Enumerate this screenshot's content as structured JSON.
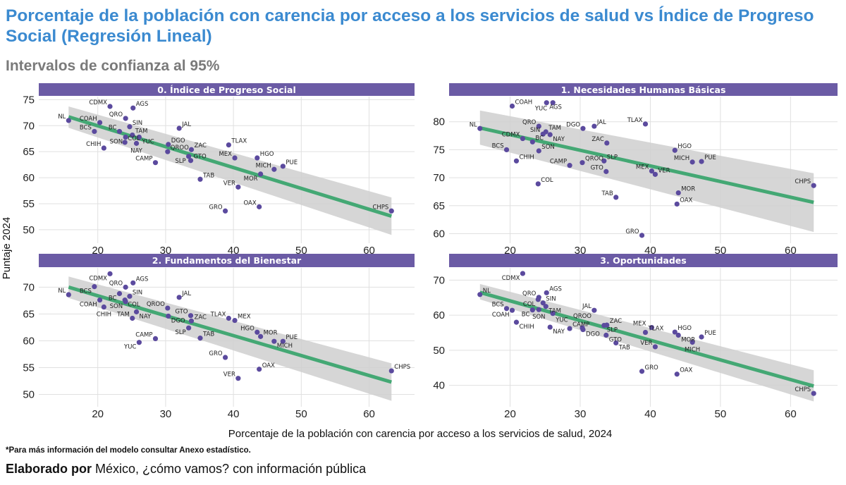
{
  "title": "Porcentaje de la población con carencia por acceso a los servicios de salud vs Índice de Progreso Social (Regresión Lineal)",
  "subtitle": "Intervalos de confianza al 95%",
  "note": "*Para más información del modelo consultar Anexo estadístico.",
  "credit": {
    "bold": "Elaborado por",
    "rest": " México, ¿cómo vamos? con información pública"
  },
  "colors": {
    "title": "#3b8ad0",
    "strip": "#6b5ba5",
    "point": "#5b4a9e",
    "fit": "#44a874",
    "band": "#cfcfcf"
  },
  "chart_data": [
    {
      "type": "scatter",
      "title": "0. Índice de Progreso Social",
      "xlabel": "Porcentaje de la población con carencia por acceso a los servicios de salud, 2024",
      "ylabel": "Puntaje 2024",
      "xlim": [
        11.3,
        66.7
      ],
      "ylim": [
        47.4,
        75.6
      ],
      "xticks": [
        20,
        30,
        40,
        50,
        60
      ],
      "yticks": [
        50,
        55,
        60,
        65,
        70,
        75
      ],
      "grid": true,
      "fit": {
        "x": [
          15.7,
          63.3
        ],
        "y": [
          71.7,
          52.6
        ],
        "ci_low": [
          69.6,
          49.0
        ],
        "ci_high": [
          73.7,
          56.2
        ]
      },
      "points": [
        {
          "label": "NL",
          "x": 15.7,
          "y": 71.0
        },
        {
          "label": "COAH",
          "x": 20.3,
          "y": 70.6
        },
        {
          "label": "CDMX",
          "x": 21.8,
          "y": 73.7
        },
        {
          "label": "AGS",
          "x": 25.2,
          "y": 73.4
        },
        {
          "label": "QRO",
          "x": 24.1,
          "y": 71.4
        },
        {
          "label": "SIN",
          "x": 24.7,
          "y": 69.8
        },
        {
          "label": "JAL",
          "x": 32.0,
          "y": 69.5
        },
        {
          "label": "BCS",
          "x": 19.5,
          "y": 68.9
        },
        {
          "label": "BC",
          "x": 23.2,
          "y": 68.9
        },
        {
          "label": "TAM",
          "x": 25.1,
          "y": 68.2
        },
        {
          "label": "SON",
          "x": 24.1,
          "y": 67.8
        },
        {
          "label": "YUC",
          "x": 26.1,
          "y": 67.8
        },
        {
          "label": "COL",
          "x": 24.0,
          "y": 66.8
        },
        {
          "label": "NAY",
          "x": 25.7,
          "y": 66.6
        },
        {
          "label": "DGO",
          "x": 30.4,
          "y": 66.4
        },
        {
          "label": "TLAX",
          "x": 39.3,
          "y": 66.3
        },
        {
          "label": "CHIH",
          "x": 20.9,
          "y": 65.7
        },
        {
          "label": "ZAC",
          "x": 33.8,
          "y": 65.4
        },
        {
          "label": "QROO",
          "x": 30.3,
          "y": 65.0
        },
        {
          "label": "SLP",
          "x": 33.4,
          "y": 64.1
        },
        {
          "label": "GTO",
          "x": 33.7,
          "y": 63.3
        },
        {
          "label": "MEX",
          "x": 40.2,
          "y": 63.8
        },
        {
          "label": "HGO",
          "x": 43.5,
          "y": 63.8
        },
        {
          "label": "CAMP",
          "x": 28.5,
          "y": 62.9
        },
        {
          "label": "PUE",
          "x": 47.3,
          "y": 62.2
        },
        {
          "label": "MICH",
          "x": 46.0,
          "y": 61.6
        },
        {
          "label": "MOR",
          "x": 44.0,
          "y": 60.7
        },
        {
          "label": "TAB",
          "x": 35.1,
          "y": 59.7
        },
        {
          "label": "VER",
          "x": 40.7,
          "y": 58.2
        },
        {
          "label": "OAX",
          "x": 43.8,
          "y": 54.4
        },
        {
          "label": "GRO",
          "x": 38.8,
          "y": 53.6
        },
        {
          "label": "CHPS",
          "x": 63.3,
          "y": 53.6
        }
      ]
    },
    {
      "type": "scatter",
      "title": "1. Necesidades Humanas Básicas",
      "xlim": [
        11.3,
        66.7
      ],
      "ylim": [
        58.3,
        84.5
      ],
      "xticks": [
        20,
        30,
        40,
        50,
        60
      ],
      "yticks": [
        60,
        65,
        70,
        75,
        80
      ],
      "grid": true,
      "fit": {
        "x": [
          15.7,
          63.3
        ],
        "y": [
          78.9,
          65.6
        ],
        "ci_low": [
          75.9,
          60.3
        ],
        "ci_high": [
          82.0,
          70.8
        ]
      },
      "points": [
        {
          "label": "COAH",
          "x": 20.3,
          "y": 82.8
        },
        {
          "label": "AGS",
          "x": 25.2,
          "y": 83.4
        },
        {
          "label": "YUC",
          "x": 26.1,
          "y": 83.4
        },
        {
          "label": "TLAX",
          "x": 39.3,
          "y": 79.6
        },
        {
          "label": "QRO",
          "x": 24.1,
          "y": 79.2
        },
        {
          "label": "JAL",
          "x": 32.0,
          "y": 79.2
        },
        {
          "label": "NL",
          "x": 15.7,
          "y": 78.8
        },
        {
          "label": "DGO",
          "x": 30.4,
          "y": 78.8
        },
        {
          "label": "TAM",
          "x": 25.1,
          "y": 78.2
        },
        {
          "label": "SIN",
          "x": 24.7,
          "y": 77.8
        },
        {
          "label": "NAY",
          "x": 25.7,
          "y": 77.7
        },
        {
          "label": "CDMX",
          "x": 21.8,
          "y": 77.0
        },
        {
          "label": "BC",
          "x": 23.2,
          "y": 76.4
        },
        {
          "label": "ZAC",
          "x": 33.8,
          "y": 76.2
        },
        {
          "label": "BCS",
          "x": 19.5,
          "y": 75.0
        },
        {
          "label": "SON",
          "x": 24.1,
          "y": 74.8
        },
        {
          "label": "HGO",
          "x": 43.5,
          "y": 74.9
        },
        {
          "label": "CHIH",
          "x": 20.9,
          "y": 73.0
        },
        {
          "label": "SLP",
          "x": 33.4,
          "y": 73.0
        },
        {
          "label": "PUE",
          "x": 47.3,
          "y": 72.9
        },
        {
          "label": "MICH",
          "x": 46.0,
          "y": 72.8
        },
        {
          "label": "QROO",
          "x": 30.3,
          "y": 72.7
        },
        {
          "label": "CAMP",
          "x": 28.5,
          "y": 72.2
        },
        {
          "label": "GTO",
          "x": 33.7,
          "y": 71.1
        },
        {
          "label": "MEX",
          "x": 40.2,
          "y": 71.2
        },
        {
          "label": "VER",
          "x": 40.7,
          "y": 70.6
        },
        {
          "label": "COL",
          "x": 24.0,
          "y": 68.9
        },
        {
          "label": "CHPS",
          "x": 63.3,
          "y": 68.6
        },
        {
          "label": "MOR",
          "x": 44.0,
          "y": 67.3
        },
        {
          "label": "TAB",
          "x": 35.1,
          "y": 66.5
        },
        {
          "label": "OAX",
          "x": 43.8,
          "y": 65.3
        },
        {
          "label": "GRO",
          "x": 38.8,
          "y": 59.7
        }
      ]
    },
    {
      "type": "scatter",
      "title": "2. Fundamentos del Bienestar",
      "xlim": [
        11.3,
        66.7
      ],
      "ylim": [
        47.7,
        73.6
      ],
      "xticks": [
        20,
        30,
        40,
        50,
        60
      ],
      "yticks": [
        50,
        55,
        60,
        65,
        70
      ],
      "grid": true,
      "fit": {
        "x": [
          15.7,
          63.3
        ],
        "y": [
          70.0,
          52.3
        ],
        "ci_low": [
          68.0,
          48.8
        ],
        "ci_high": [
          72.0,
          55.8
        ]
      },
      "points": [
        {
          "label": "CDMX",
          "x": 21.8,
          "y": 72.5
        },
        {
          "label": "AGS",
          "x": 25.2,
          "y": 70.8
        },
        {
          "label": "BCS",
          "x": 19.5,
          "y": 70.1
        },
        {
          "label": "QRO",
          "x": 24.1,
          "y": 70.0
        },
        {
          "label": "NL",
          "x": 15.7,
          "y": 68.6
        },
        {
          "label": "BC",
          "x": 23.2,
          "y": 68.8
        },
        {
          "label": "SIN",
          "x": 24.7,
          "y": 68.3
        },
        {
          "label": "JAL",
          "x": 32.0,
          "y": 68.1
        },
        {
          "label": "COAH",
          "x": 20.3,
          "y": 67.6
        },
        {
          "label": "COL",
          "x": 24.0,
          "y": 67.6
        },
        {
          "label": "SON",
          "x": 24.1,
          "y": 67.3
        },
        {
          "label": "CHIH",
          "x": 20.9,
          "y": 66.3
        },
        {
          "label": "QROO",
          "x": 30.3,
          "y": 66.1
        },
        {
          "label": "NAY",
          "x": 25.7,
          "y": 65.4
        },
        {
          "label": "GTO",
          "x": 33.7,
          "y": 64.7
        },
        {
          "label": "DGO",
          "x": 30.4,
          "y": 64.6
        },
        {
          "label": "TAM",
          "x": 25.1,
          "y": 64.2
        },
        {
          "label": "TLAX",
          "x": 39.3,
          "y": 64.2
        },
        {
          "label": "ZAC",
          "x": 33.8,
          "y": 63.7
        },
        {
          "label": "MEX",
          "x": 40.2,
          "y": 63.8
        },
        {
          "label": "SLP",
          "x": 33.4,
          "y": 62.4
        },
        {
          "label": "HGO",
          "x": 43.5,
          "y": 61.6
        },
        {
          "label": "MOR",
          "x": 44.0,
          "y": 60.8
        },
        {
          "label": "TAB",
          "x": 35.1,
          "y": 60.5
        },
        {
          "label": "CAMP",
          "x": 28.5,
          "y": 60.4
        },
        {
          "label": "MICH",
          "x": 46.0,
          "y": 59.9
        },
        {
          "label": "PUE",
          "x": 47.3,
          "y": 59.9
        },
        {
          "label": "YUC",
          "x": 26.1,
          "y": 59.7
        },
        {
          "label": "GRO",
          "x": 38.8,
          "y": 56.9
        },
        {
          "label": "OAX",
          "x": 43.8,
          "y": 54.7
        },
        {
          "label": "CHPS",
          "x": 63.3,
          "y": 54.4
        },
        {
          "label": "VER",
          "x": 40.7,
          "y": 53.0
        }
      ]
    },
    {
      "type": "scatter",
      "title": "3. Oportunidades",
      "xlim": [
        11.3,
        66.7
      ],
      "ylim": [
        33.9,
        73.5
      ],
      "xticks": [
        20,
        30,
        40,
        50,
        60
      ],
      "yticks": [
        40,
        50,
        60,
        70
      ],
      "grid": true,
      "fit": {
        "x": [
          15.7,
          63.3
        ],
        "y": [
          66.5,
          39.8
        ],
        "ci_low": [
          64.5,
          35.4
        ],
        "ci_high": [
          68.9,
          44.3
        ]
      },
      "points": [
        {
          "label": "CDMX",
          "x": 21.8,
          "y": 71.9
        },
        {
          "label": "AGS",
          "x": 25.2,
          "y": 66.4
        },
        {
          "label": "NL",
          "x": 15.7,
          "y": 65.9
        },
        {
          "label": "QRO",
          "x": 24.1,
          "y": 65.1
        },
        {
          "label": "COL",
          "x": 24.0,
          "y": 64.5
        },
        {
          "label": "SIN",
          "x": 24.7,
          "y": 63.5
        },
        {
          "label": "TAM",
          "x": 25.1,
          "y": 62.5
        },
        {
          "label": "BC",
          "x": 23.2,
          "y": 61.5
        },
        {
          "label": "SON",
          "x": 24.1,
          "y": 61.6
        },
        {
          "label": "YUC",
          "x": 26.1,
          "y": 60.5
        },
        {
          "label": "BCS",
          "x": 19.5,
          "y": 61.9
        },
        {
          "label": "COAH",
          "x": 20.3,
          "y": 61.4
        },
        {
          "label": "JAL",
          "x": 32.0,
          "y": 61.4
        },
        {
          "label": "CHIH",
          "x": 20.9,
          "y": 58.0
        },
        {
          "label": "NAY",
          "x": 25.7,
          "y": 56.6
        },
        {
          "label": "CAMP",
          "x": 28.5,
          "y": 56.2
        },
        {
          "label": "DGO",
          "x": 30.4,
          "y": 55.9
        },
        {
          "label": "QROO",
          "x": 30.3,
          "y": 56.4
        },
        {
          "label": "ZAC",
          "x": 33.8,
          "y": 57.2
        },
        {
          "label": "SLP",
          "x": 33.4,
          "y": 57.1
        },
        {
          "label": "GTO",
          "x": 33.7,
          "y": 54.3
        },
        {
          "label": "TAB",
          "x": 35.1,
          "y": 52.1
        },
        {
          "label": "GRO",
          "x": 38.8,
          "y": 44.0
        },
        {
          "label": "TLAX",
          "x": 39.3,
          "y": 55.1
        },
        {
          "label": "MEX",
          "x": 40.2,
          "y": 56.5
        },
        {
          "label": "VER",
          "x": 40.7,
          "y": 51.0
        },
        {
          "label": "HGO",
          "x": 43.5,
          "y": 55.2
        },
        {
          "label": "OAX",
          "x": 43.8,
          "y": 43.2
        },
        {
          "label": "MOR",
          "x": 44.0,
          "y": 54.3
        },
        {
          "label": "MICH",
          "x": 46.0,
          "y": 52.3
        },
        {
          "label": "PUE",
          "x": 47.3,
          "y": 53.8
        },
        {
          "label": "CHPS",
          "x": 63.3,
          "y": 37.7
        }
      ]
    }
  ]
}
